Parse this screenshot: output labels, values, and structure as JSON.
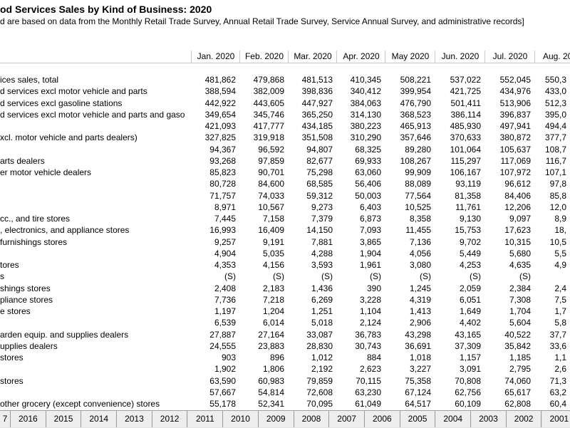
{
  "title": "od Services Sales by Kind of Business: 2020",
  "subtitle": "d are based on data from the Monthly Retail Trade Survey, Annual Retail Trade Survey, Service Annual Survey, and administrative records]",
  "table": {
    "columns": [
      "Jan. 2020",
      "Feb. 2020",
      "Mar. 2020",
      "Apr. 2020",
      "May 2020",
      "Jun. 2020",
      "Jul. 2020",
      "Aug. 202"
    ],
    "rows": [
      {
        "label": "ices sales, total",
        "cells": [
          "481,862",
          "479,868",
          "481,513",
          "410,345",
          "508,221",
          "537,022",
          "552,045",
          "550,3"
        ]
      },
      {
        "label": "d services excl motor vehicle and parts",
        "cells": [
          "388,594",
          "382,009",
          "398,836",
          "340,412",
          "399,954",
          "421,725",
          "434,976",
          "433,0"
        ]
      },
      {
        "label": "d services excl gasoline stations",
        "cells": [
          "442,922",
          "443,605",
          "447,927",
          "384,063",
          "476,790",
          "501,411",
          "513,906",
          "512,3"
        ]
      },
      {
        "label": "d services excl motor vehicle and parts and gaso",
        "cells": [
          "349,654",
          "345,746",
          "365,250",
          "314,130",
          "368,523",
          "386,114",
          "396,837",
          "395,0"
        ]
      },
      {
        "label": null,
        "cells": [
          "421,093",
          "417,777",
          "434,185",
          "380,223",
          "465,913",
          "485,930",
          "497,941",
          "494,4"
        ]
      },
      {
        "label": "xcl. motor vehicle and parts dealers)",
        "cells": [
          "327,825",
          "319,918",
          "351,508",
          "310,290",
          "357,646",
          "370,633",
          "380,872",
          "377,7"
        ]
      },
      {
        "label": null,
        "cells": [
          "94,367",
          "96,592",
          "94,807",
          "68,325",
          "89,280",
          "101,064",
          "105,637",
          "108,7"
        ]
      },
      {
        "label": "arts dealers",
        "cells": [
          "93,268",
          "97,859",
          "82,677",
          "69,933",
          "108,267",
          "115,297",
          "117,069",
          "116,7"
        ]
      },
      {
        "label": "er motor vehicle dealers",
        "cells": [
          "85,823",
          "90,701",
          "75,298",
          "63,060",
          "99,909",
          "106,167",
          "107,972",
          "107,1"
        ]
      },
      {
        "label": null,
        "cells": [
          "80,728",
          "84,600",
          "68,585",
          "56,406",
          "88,089",
          "93,119",
          "96,612",
          "97,8"
        ]
      },
      {
        "label": null,
        "cells": [
          "71,757",
          "74,033",
          "59,312",
          "50,003",
          "77,564",
          "81,358",
          "84,406",
          "85,8"
        ]
      },
      {
        "label": null,
        "cells": [
          "8,971",
          "10,567",
          "9,273",
          "6,403",
          "10,525",
          "11,761",
          "12,206",
          "12,0"
        ]
      },
      {
        "label": "cc., and tire stores",
        "cells": [
          "7,445",
          "7,158",
          "7,379",
          "6,873",
          "8,358",
          "9,130",
          "9,097",
          "8,9"
        ]
      },
      {
        "label": ", electronics, and appliance stores",
        "cells": [
          "16,993",
          "16,409",
          "14,150",
          "7,093",
          "11,455",
          "15,753",
          "17,623",
          "18,"
        ]
      },
      {
        "label": "furnishings stores",
        "cells": [
          "9,257",
          "9,191",
          "7,881",
          "3,865",
          "7,136",
          "9,702",
          "10,315",
          "10,5"
        ]
      },
      {
        "label": null,
        "cells": [
          "4,904",
          "5,035",
          "4,288",
          "1,904",
          "4,056",
          "5,449",
          "5,680",
          "5,5"
        ]
      },
      {
        "label": "tores",
        "cells": [
          "4,353",
          "4,156",
          "3,593",
          "1,961",
          "3,080",
          "4,253",
          "4,635",
          "4,9"
        ]
      },
      {
        "label": "s",
        "cells": [
          "(S)",
          "(S)",
          "(S)",
          "(S)",
          "(S)",
          "(S)",
          "(S)",
          null
        ]
      },
      {
        "label": "shings stores",
        "cells": [
          "2,408",
          "2,183",
          "1,436",
          "390",
          "1,245",
          "2,059",
          "2,384",
          "2,4"
        ]
      },
      {
        "label": "pliance stores",
        "cells": [
          "7,736",
          "7,218",
          "6,269",
          "3,228",
          "4,319",
          "6,051",
          "7,308",
          "7,5"
        ]
      },
      {
        "label": "e stores",
        "cells": [
          "1,197",
          "1,204",
          "1,251",
          "1,104",
          "1,413",
          "1,649",
          "1,704",
          "1,7"
        ]
      },
      {
        "label": null,
        "cells": [
          "6,539",
          "6,014",
          "5,018",
          "2,124",
          "2,906",
          "4,402",
          "5,604",
          "5,8"
        ]
      },
      {
        "label": "arden equip. and supplies dealers",
        "cells": [
          "27,887",
          "27,164",
          "33,087",
          "36,783",
          "43,298",
          "43,165",
          "40,522",
          "37,7"
        ]
      },
      {
        "label": "upplies dealers",
        "cells": [
          "24,555",
          "23,883",
          "28,830",
          "30,743",
          "36,691",
          "37,309",
          "35,842",
          "33,6"
        ]
      },
      {
        "label": " stores",
        "cells": [
          "903",
          "896",
          "1,012",
          "884",
          "1,018",
          "1,157",
          "1,185",
          "1,1"
        ]
      },
      {
        "label": null,
        "cells": [
          "1,902",
          "1,806",
          "2,192",
          "2,623",
          "3,227",
          "3,091",
          "2,795",
          "2,6"
        ]
      },
      {
        "label": "stores",
        "cells": [
          "63,590",
          "60,983",
          "79,859",
          "70,115",
          "75,358",
          "70,808",
          "74,060",
          "71,3"
        ]
      },
      {
        "label": null,
        "cells": [
          "57,667",
          "54,814",
          "72,608",
          "63,230",
          "67,124",
          "62,756",
          "65,617",
          "63,2"
        ]
      },
      {
        "label": "other grocery (except convenience) stores",
        "cells": [
          "55,178",
          "52,341",
          "70,095",
          "61,049",
          "64,517",
          "60,109",
          "62,808",
          "60,4"
        ]
      }
    ]
  },
  "sheet_tabs": [
    "7",
    "2016",
    "2015",
    "2014",
    "2013",
    "2012",
    "2011",
    "2010",
    "2009",
    "2008",
    "2007",
    "2006",
    "2005",
    "2004",
    "2003",
    "2002",
    "2001"
  ]
}
